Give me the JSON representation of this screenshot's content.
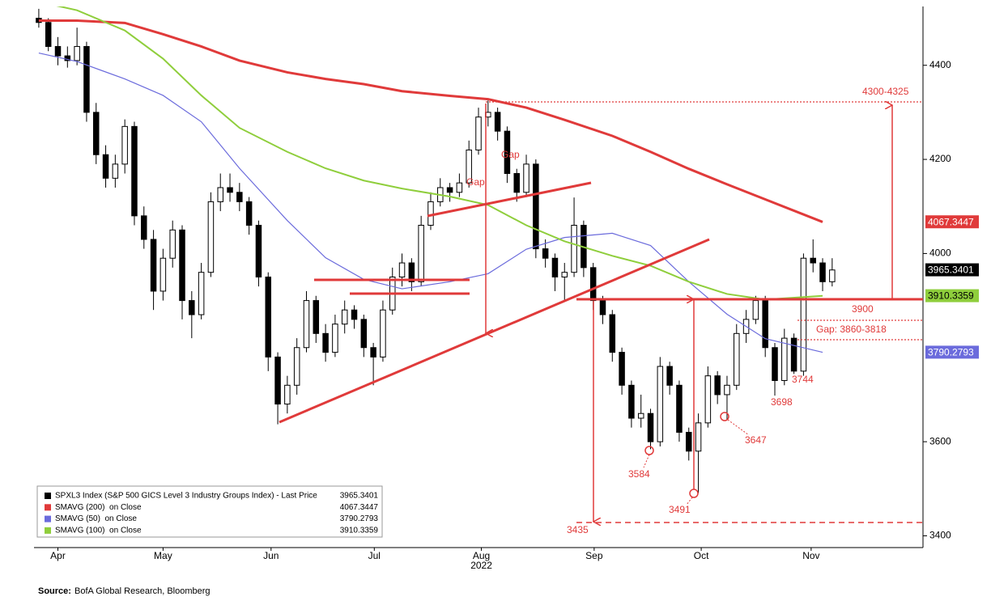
{
  "chart_data": {
    "type": "candlestick",
    "series": [
      {
        "type": "candlestick",
        "name": "SPXL3 Index (S&P 500 GICS Level 3 Industry Groups Index) - Last Price",
        "color": "#000000",
        "last_value": 3965.3401,
        "ohlc": [
          [
            4500,
            4520,
            4480,
            4491
          ],
          [
            4491,
            4500,
            4430,
            4440
          ],
          [
            4440,
            4460,
            4400,
            4420
          ],
          [
            4420,
            4440,
            4395,
            4410
          ],
          [
            4410,
            4480,
            4400,
            4440
          ],
          [
            4440,
            4450,
            4280,
            4300
          ],
          [
            4300,
            4320,
            4190,
            4210
          ],
          [
            4210,
            4230,
            4140,
            4160
          ],
          [
            4160,
            4210,
            4140,
            4190
          ],
          [
            4190,
            4285,
            4170,
            4270
          ],
          [
            4270,
            4280,
            4060,
            4080
          ],
          [
            4080,
            4100,
            4010,
            4030
          ],
          [
            4030,
            4050,
            3880,
            3920
          ],
          [
            3920,
            4010,
            3900,
            3990
          ],
          [
            3990,
            4070,
            3970,
            4050
          ],
          [
            4050,
            4060,
            3860,
            3900
          ],
          [
            3900,
            3920,
            3820,
            3870
          ],
          [
            3870,
            3980,
            3860,
            3960
          ],
          [
            3960,
            4130,
            3950,
            4110
          ],
          [
            4110,
            4170,
            4090,
            4140
          ],
          [
            4140,
            4170,
            4110,
            4130
          ],
          [
            4130,
            4150,
            4090,
            4110
          ],
          [
            4110,
            4120,
            4040,
            4060
          ],
          [
            4060,
            4070,
            3930,
            3950
          ],
          [
            3950,
            3960,
            3750,
            3780
          ],
          [
            3780,
            3790,
            3637,
            3680
          ],
          [
            3680,
            3740,
            3660,
            3720
          ],
          [
            3720,
            3820,
            3700,
            3800
          ],
          [
            3800,
            3920,
            3790,
            3900
          ],
          [
            3900,
            3910,
            3810,
            3830
          ],
          [
            3830,
            3850,
            3770,
            3790
          ],
          [
            3790,
            3870,
            3780,
            3850
          ],
          [
            3850,
            3900,
            3830,
            3880
          ],
          [
            3880,
            3890,
            3840,
            3860
          ],
          [
            3860,
            3870,
            3780,
            3800
          ],
          [
            3800,
            3810,
            3720,
            3780
          ],
          [
            3780,
            3900,
            3770,
            3880
          ],
          [
            3880,
            3970,
            3870,
            3950
          ],
          [
            3950,
            4000,
            3930,
            3980
          ],
          [
            3980,
            3990,
            3920,
            3940
          ],
          [
            3940,
            4080,
            3930,
            4060
          ],
          [
            4060,
            4130,
            4050,
            4110
          ],
          [
            4110,
            4160,
            4100,
            4140
          ],
          [
            4140,
            4150,
            4110,
            4130
          ],
          [
            4130,
            4170,
            4120,
            4150
          ],
          [
            4150,
            4240,
            4140,
            4220
          ],
          [
            4220,
            4310,
            4210,
            4290
          ],
          [
            4290,
            4325,
            4270,
            4300
          ],
          [
            4300,
            4310,
            4240,
            4260
          ],
          [
            4260,
            4270,
            4150,
            4170
          ],
          [
            4170,
            4180,
            4110,
            4130
          ],
          [
            4130,
            4210,
            4120,
            4190
          ],
          [
            4190,
            4200,
            3990,
            4010
          ],
          [
            4010,
            4030,
            3970,
            3990
          ],
          [
            3990,
            4000,
            3920,
            3950
          ],
          [
            3950,
            3980,
            3900,
            3960
          ],
          [
            3960,
            4119,
            3950,
            4060
          ],
          [
            4060,
            4070,
            3950,
            3970
          ],
          [
            3970,
            3980,
            3880,
            3900
          ],
          [
            3900,
            3910,
            3850,
            3870
          ],
          [
            3870,
            3880,
            3770,
            3790
          ],
          [
            3790,
            3800,
            3700,
            3720
          ],
          [
            3720,
            3730,
            3630,
            3650
          ],
          [
            3650,
            3700,
            3630,
            3660
          ],
          [
            3660,
            3670,
            3584,
            3600
          ],
          [
            3600,
            3780,
            3590,
            3760
          ],
          [
            3760,
            3770,
            3700,
            3720
          ],
          [
            3720,
            3730,
            3600,
            3620
          ],
          [
            3620,
            3630,
            3560,
            3580
          ],
          [
            3580,
            3660,
            3491,
            3640
          ],
          [
            3640,
            3760,
            3630,
            3740
          ],
          [
            3740,
            3750,
            3680,
            3700
          ],
          [
            3700,
            3740,
            3647,
            3720
          ],
          [
            3720,
            3850,
            3710,
            3830
          ],
          [
            3830,
            3880,
            3810,
            3860
          ],
          [
            3860,
            3910,
            3850,
            3900
          ],
          [
            3900,
            3910,
            3780,
            3800
          ],
          [
            3800,
            3810,
            3698,
            3730
          ],
          [
            3730,
            3840,
            3720,
            3820
          ],
          [
            3820,
            3830,
            3744,
            3750
          ],
          [
            3750,
            4000,
            3740,
            3990
          ],
          [
            3990,
            4030,
            3960,
            3980
          ],
          [
            3980,
            3990,
            3920,
            3940
          ],
          [
            3940,
            3990,
            3930,
            3965
          ]
        ]
      },
      {
        "type": "line",
        "name": "SMAVG (200)  on Close",
        "color": "#e03a3a",
        "last_value": 4067.3447,
        "x": [
          0,
          4,
          9,
          13,
          17,
          21,
          26,
          30,
          34,
          38,
          43,
          47,
          51,
          55,
          60,
          64,
          68,
          72,
          76,
          82
        ],
        "values": [
          4495,
          4495,
          4490,
          4466,
          4440,
          4410,
          4385,
          4371,
          4360,
          4345,
          4335,
          4328,
          4310,
          4284,
          4250,
          4216,
          4180,
          4147,
          4115,
          4067
        ]
      },
      {
        "type": "line",
        "name": "SMAVG (50)  on Close",
        "color": "#6b6bdc",
        "last_value": 3790.2793,
        "x": [
          0,
          4,
          9,
          13,
          17,
          21,
          26,
          30,
          34,
          38,
          43,
          47,
          51,
          55,
          60,
          64,
          68,
          72,
          76,
          82
        ],
        "values": [
          4426,
          4408,
          4371,
          4336,
          4280,
          4181,
          4070,
          3991,
          3945,
          3925,
          3940,
          3957,
          4009,
          4034,
          4043,
          4017,
          3940,
          3871,
          3819,
          3790
        ]
      },
      {
        "type": "line",
        "name": "SMAVG (100)  on Close",
        "color": "#8fce3c",
        "last_value": 3910.3359,
        "x": [
          0,
          4,
          9,
          13,
          17,
          21,
          26,
          30,
          34,
          38,
          43,
          47,
          51,
          55,
          60,
          64,
          68,
          72,
          76,
          82
        ],
        "values": [
          4535,
          4517,
          4474,
          4414,
          4336,
          4267,
          4216,
          4181,
          4155,
          4138,
          4121,
          4103,
          4060,
          4026,
          3995,
          3974,
          3940,
          3914,
          3902,
          3910
        ]
      }
    ],
    "xlim": [
      -0.5,
      92.5
    ],
    "xticks": [
      {
        "value": 2,
        "label": "Apr"
      },
      {
        "value": 13,
        "label": "May"
      },
      {
        "value": 24.3,
        "label": "Jun"
      },
      {
        "value": 35.1,
        "label": "Jul"
      },
      {
        "value": 46.3,
        "label": "Aug"
      },
      {
        "value": 58.1,
        "label": "Sep"
      },
      {
        "value": 69.3,
        "label": "Oct"
      },
      {
        "value": 80.8,
        "label": "Nov"
      }
    ],
    "x_label": "2022",
    "ylim": [
      3375,
      4525
    ],
    "yticks": [
      3400,
      3600,
      4000,
      4200,
      4400
    ],
    "annotations": [
      "Gap",
      "Gap",
      "4300-4325",
      "3900",
      "Gap: 3860-3818",
      "3744",
      "3698",
      "3647",
      "3584",
      "3491",
      "3435"
    ],
    "source_label": "Source:",
    "source": "BofA Global Research, Bloomberg"
  }
}
